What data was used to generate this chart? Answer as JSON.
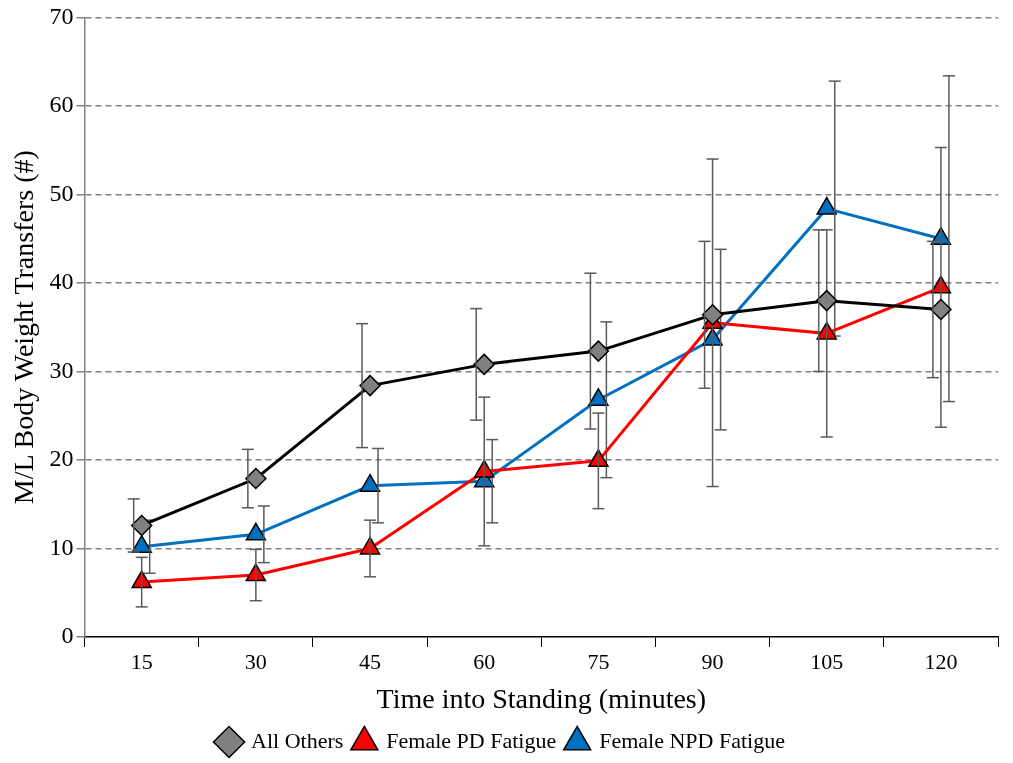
{
  "chart_data": {
    "type": "line",
    "xlabel": "Time into Standing (minutes)",
    "ylabel": "M/L Body Weight Transfers (#)",
    "categories": [
      "15",
      "30",
      "45",
      "60",
      "75",
      "90",
      "105",
      "120"
    ],
    "series": [
      {
        "name": "All Others",
        "color": "#000000",
        "marker": "diamond",
        "values": [
          12.6,
          17.9,
          28.4,
          30.8,
          32.3,
          36.4,
          38.0,
          37.0
        ],
        "errors": [
          3.0,
          3.3,
          7.0,
          6.3,
          8.8,
          8.3,
          8.0,
          7.7
        ]
      },
      {
        "name": "Female PD Fatigue",
        "color": "#ff0000",
        "marker": "triangle",
        "values": [
          6.2,
          7.0,
          10.0,
          18.7,
          19.9,
          35.5,
          34.3,
          39.5
        ],
        "errors": [
          2.8,
          2.9,
          3.2,
          8.4,
          5.4,
          18.5,
          11.7,
          15.8
        ]
      },
      {
        "name": "Female NPD Fatigue",
        "color": "#0070c0",
        "marker": "triangle",
        "values": [
          10.2,
          11.6,
          17.1,
          17.6,
          26.8,
          33.6,
          48.4,
          45.0
        ],
        "errors": [
          3.0,
          3.2,
          4.2,
          4.7,
          8.8,
          10.2,
          14.4,
          18.4
        ]
      }
    ],
    "ylim": [
      0,
      70
    ],
    "yticks": [
      0,
      10,
      20,
      30,
      40,
      50,
      60,
      70
    ],
    "grid": "y",
    "legend": "bottom"
  }
}
